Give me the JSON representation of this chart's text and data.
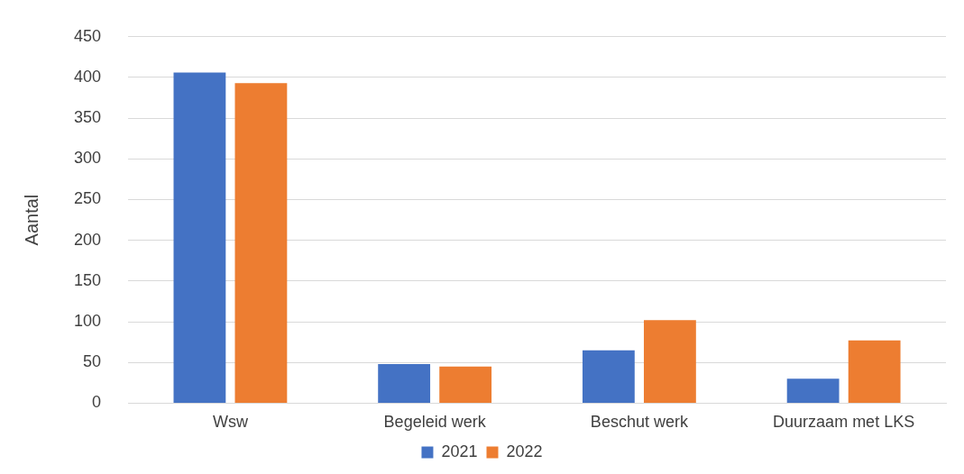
{
  "chart_data": {
    "type": "bar",
    "ylabel": "Aantal",
    "categories": [
      "Wsw",
      "Begeleid werk",
      "Beschut werk",
      "Duurzaam met LKS"
    ],
    "series": [
      {
        "name": "2021",
        "color": "#4472c4",
        "values": [
          406,
          48,
          65,
          30
        ]
      },
      {
        "name": "2022",
        "color": "#ed7d31",
        "values": [
          393,
          45,
          102,
          77
        ]
      }
    ],
    "ylim": [
      0,
      450
    ],
    "yticks": [
      0,
      50,
      100,
      150,
      200,
      250,
      300,
      350,
      400,
      450
    ],
    "grid": "y",
    "legend": "bottom"
  }
}
